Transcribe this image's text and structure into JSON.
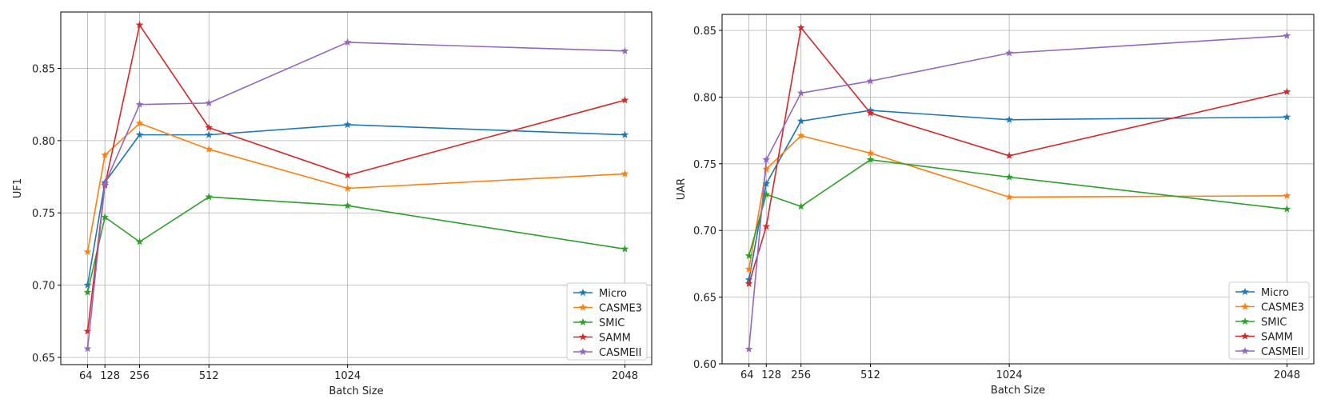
{
  "chart_data": [
    {
      "type": "line",
      "title": "",
      "xlabel": "Batch Size",
      "ylabel": "UF1",
      "x": [
        64,
        128,
        256,
        512,
        1024,
        2048
      ],
      "xticks": [
        "64",
        "128",
        "256",
        "512",
        "1024",
        "2048"
      ],
      "xlim": [
        -35,
        2147
      ],
      "ylim": [
        0.645,
        0.889
      ],
      "yticks": [
        0.65,
        0.7,
        0.75,
        0.8,
        0.85
      ],
      "ytick_labels": [
        "0.65",
        "0.70",
        "0.75",
        "0.80",
        "0.85"
      ],
      "grid": true,
      "legend_position": "lower-right",
      "marker": "star",
      "series": [
        {
          "name": "Micro",
          "color": "#1f77b4",
          "values": [
            0.7,
            0.771,
            0.804,
            0.804,
            0.811,
            0.804
          ]
        },
        {
          "name": "CASME3",
          "color": "#ff7f0e",
          "values": [
            0.723,
            0.79,
            0.812,
            0.794,
            0.767,
            0.777
          ]
        },
        {
          "name": "SMIC",
          "color": "#2ca02c",
          "values": [
            0.695,
            0.747,
            0.73,
            0.761,
            0.755,
            0.725
          ]
        },
        {
          "name": "SAMM",
          "color": "#d62728",
          "values": [
            0.668,
            0.769,
            0.88,
            0.809,
            0.776,
            0.828
          ]
        },
        {
          "name": "CASMEII",
          "color": "#9467bd",
          "values": [
            0.656,
            0.77,
            0.825,
            0.826,
            0.868,
            0.862
          ]
        }
      ]
    },
    {
      "type": "line",
      "title": "",
      "xlabel": "Batch Size",
      "ylabel": "UAR",
      "x": [
        64,
        128,
        256,
        512,
        1024,
        2048
      ],
      "xticks": [
        "64",
        "128",
        "256",
        "512",
        "1024",
        "2048"
      ],
      "xlim": [
        -35,
        2147
      ],
      "ylim": [
        0.6,
        0.862
      ],
      "yticks": [
        0.6,
        0.65,
        0.7,
        0.75,
        0.8,
        0.85
      ],
      "ytick_labels": [
        "0.60",
        "0.65",
        "0.70",
        "0.75",
        "0.80",
        "0.85"
      ],
      "grid": true,
      "legend_position": "lower-right",
      "marker": "star",
      "series": [
        {
          "name": "Micro",
          "color": "#1f77b4",
          "values": [
            0.663,
            0.735,
            0.782,
            0.79,
            0.783,
            0.785
          ]
        },
        {
          "name": "CASME3",
          "color": "#ff7f0e",
          "values": [
            0.671,
            0.746,
            0.771,
            0.758,
            0.725,
            0.726
          ]
        },
        {
          "name": "SMIC",
          "color": "#2ca02c",
          "values": [
            0.681,
            0.727,
            0.718,
            0.753,
            0.74,
            0.716
          ]
        },
        {
          "name": "SAMM",
          "color": "#d62728",
          "values": [
            0.66,
            0.703,
            0.852,
            0.788,
            0.756,
            0.804
          ]
        },
        {
          "name": "CASMEII",
          "color": "#9467bd",
          "values": [
            0.611,
            0.753,
            0.803,
            0.812,
            0.833,
            0.846
          ]
        }
      ]
    }
  ]
}
